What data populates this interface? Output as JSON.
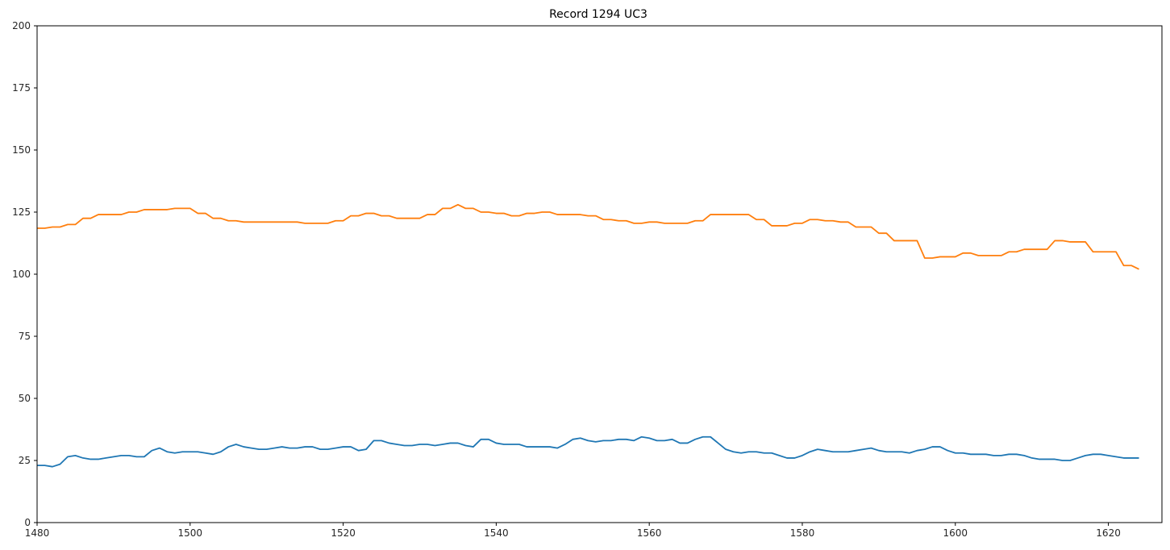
{
  "chart_data": {
    "type": "line",
    "title": "Record 1294 UC3",
    "xlabel": "",
    "ylabel": "",
    "xlim": [
      1480,
      1627
    ],
    "ylim": [
      0,
      200
    ],
    "x_ticks": [
      1480,
      1500,
      1520,
      1540,
      1560,
      1580,
      1600,
      1620
    ],
    "y_ticks": [
      0,
      25,
      50,
      75,
      100,
      125,
      150,
      175,
      200
    ],
    "grid": false,
    "legend": "none",
    "x_start": 1480,
    "x_step": 1,
    "series": [
      {
        "color": "#1f77b4",
        "values": [
          23,
          23,
          22.5,
          23.5,
          26.5,
          27,
          26,
          25.5,
          25.5,
          26,
          26.5,
          27,
          27,
          26.5,
          26.5,
          29,
          30,
          28.5,
          28,
          28.5,
          28.5,
          28.5,
          28,
          27.5,
          28.5,
          30.5,
          31.5,
          30.5,
          30,
          29.5,
          29.5,
          30,
          30.5,
          30,
          30,
          30.5,
          30.5,
          29.5,
          29.5,
          30,
          30.5,
          30.5,
          29,
          29.5,
          33,
          33,
          32,
          31.5,
          31,
          31,
          31.5,
          31.5,
          31,
          31.5,
          32,
          32,
          31,
          30.5,
          33.5,
          33.5,
          32,
          31.5,
          31.5,
          31.5,
          30.5,
          30.5,
          30.5,
          30.5,
          30,
          31.5,
          33.5,
          34,
          33,
          32.5,
          33,
          33,
          33.5,
          33.5,
          33,
          34.5,
          34,
          33,
          33,
          33.5,
          32,
          32,
          33.5,
          34.5,
          34.5,
          32,
          29.5,
          28.5,
          28,
          28.5,
          28.5,
          28,
          28,
          27,
          26,
          26,
          27,
          28.5,
          29.5,
          29,
          28.5,
          28.5,
          28.5,
          29,
          29.5,
          30,
          29,
          28.5,
          28.5,
          28.5,
          28,
          29,
          29.5,
          30.5,
          30.5,
          29,
          28,
          28,
          27.5,
          27.5,
          27.5,
          27,
          27,
          27.5,
          27.5,
          27,
          26,
          25.5,
          25.5,
          25.5,
          25,
          25,
          26,
          27,
          27.5,
          27.5,
          27,
          26.5,
          26,
          26,
          26
        ]
      },
      {
        "color": "#ff7f0e",
        "values": [
          118.5,
          118.5,
          119,
          119,
          120,
          120,
          122.5,
          122.5,
          124,
          124,
          124,
          124,
          125,
          125,
          126,
          126,
          126,
          126,
          126.5,
          126.5,
          126.5,
          124.5,
          124.5,
          122.5,
          122.5,
          121.5,
          121.5,
          121,
          121,
          121,
          121,
          121,
          121,
          121,
          121,
          120.5,
          120.5,
          120.5,
          120.5,
          121.5,
          121.5,
          123.5,
          123.5,
          124.5,
          124.5,
          123.5,
          123.5,
          122.5,
          122.5,
          122.5,
          122.5,
          124,
          124,
          126.5,
          126.5,
          128,
          126.5,
          126.5,
          125,
          125,
          124.5,
          124.5,
          123.5,
          123.5,
          124.5,
          124.5,
          125,
          125,
          124,
          124,
          124,
          124,
          123.5,
          123.5,
          122,
          122,
          121.5,
          121.5,
          120.5,
          120.5,
          121,
          121,
          120.5,
          120.5,
          120.5,
          120.5,
          121.5,
          121.5,
          124,
          124,
          124,
          124,
          124,
          124,
          122,
          122,
          119.5,
          119.5,
          119.5,
          120.5,
          120.5,
          122,
          122,
          121.5,
          121.5,
          121,
          121,
          119,
          119,
          119,
          116.5,
          116.5,
          113.5,
          113.5,
          113.5,
          113.5,
          106.5,
          106.5,
          107,
          107,
          107,
          108.5,
          108.5,
          107.5,
          107.5,
          107.5,
          107.5,
          109,
          109,
          110,
          110,
          110,
          110,
          113.5,
          113.5,
          113,
          113,
          113,
          109,
          109,
          109,
          109,
          103.5,
          103.5,
          102
        ]
      }
    ]
  }
}
